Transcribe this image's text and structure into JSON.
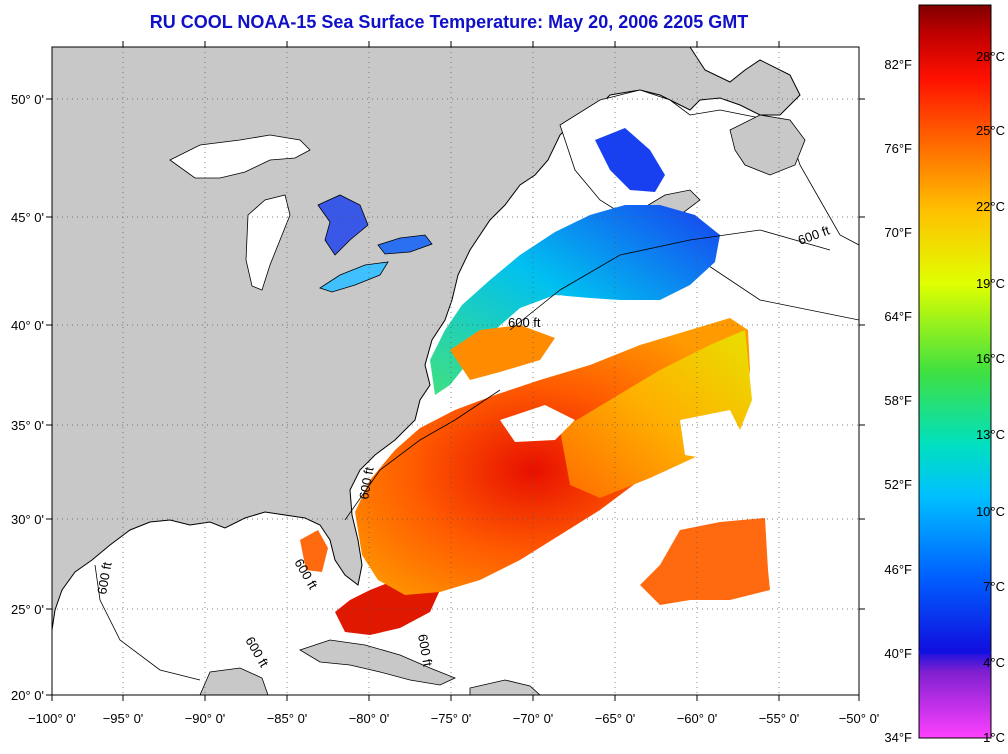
{
  "map": {
    "title": "RU COOL  NOAA-15  Sea Surface Temperature:  May 20, 2006 2205 GMT",
    "lat_labels": [
      "50° 0'",
      "45° 0'",
      "40° 0'",
      "35° 0'",
      "30° 0'",
      "25° 0'",
      "20° 0'"
    ],
    "lon_labels": [
      "−100° 0'",
      "−95° 0'",
      "−90° 0'",
      "−85° 0'",
      "−80° 0'",
      "−75° 0'",
      "−70° 0'",
      "−65° 0'",
      "−60° 0'",
      "−55° 0'",
      "−50° 0'"
    ],
    "contour_label": "600 ft",
    "colors": {
      "land": "#c8c8c8",
      "no_data": "#ffffff",
      "title": "#1010c8"
    }
  },
  "colorbar": {
    "fahrenheit": [
      "82°F",
      "76°F",
      "70°F",
      "64°F",
      "58°F",
      "52°F",
      "46°F",
      "40°F",
      "34°F"
    ],
    "celsius": [
      "28°C",
      "25°C",
      "22°C",
      "19°C",
      "16°C",
      "13°C",
      "10°C",
      "7°C",
      "4°C",
      "1°C"
    ],
    "colors": [
      "#ff40ff",
      "#8020d0",
      "#1010e0",
      "#0060ff",
      "#00c0ff",
      "#00e0c0",
      "#40e040",
      "#e0ff00",
      "#ffc000",
      "#ff6000",
      "#ff1000",
      "#c00000",
      "#800000"
    ]
  }
}
